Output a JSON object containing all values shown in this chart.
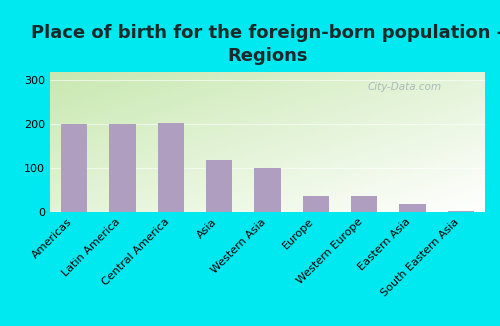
{
  "title": "Place of birth for the foreign-born population -\nRegions",
  "categories": [
    "Americas",
    "Latin America",
    "Central America",
    "Asia",
    "Western Asia",
    "Europe",
    "Western Europe",
    "Eastern Asia",
    "South Eastern Asia"
  ],
  "values": [
    200,
    200,
    203,
    118,
    100,
    37,
    36,
    18,
    3
  ],
  "bar_color": "#b09ec0",
  "background_color": "#00e8f0",
  "ylim": [
    0,
    320
  ],
  "yticks": [
    0,
    100,
    200,
    300
  ],
  "title_fontsize": 13,
  "title_color": "#1a2a2a",
  "tick_fontsize": 8,
  "watermark": "City-Data.com",
  "gradient_top_left": "#d0e8c0",
  "gradient_bottom_right": "#f0f8f0"
}
